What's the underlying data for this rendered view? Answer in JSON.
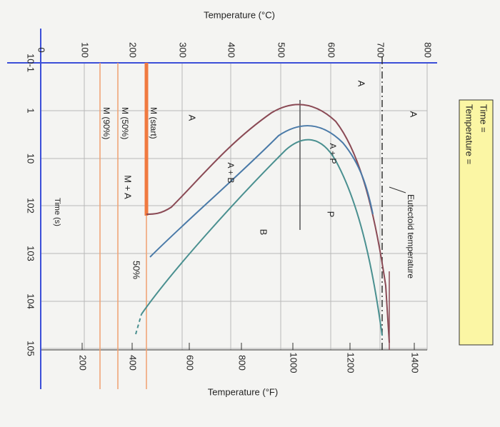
{
  "axes": {
    "celsius_title": "Temperature (°C)",
    "fahrenheit_title": "Temperature (°F)",
    "time_title": "Time (s)",
    "celsius_ticks": [
      "800",
      "700",
      "600",
      "500",
      "400",
      "300",
      "200",
      "100",
      "0"
    ],
    "fahrenheit_ticks": [
      "1400",
      "1200",
      "1000",
      "800",
      "600",
      "400",
      "200"
    ],
    "time_ticks": [
      "10-1",
      "1",
      "10",
      "102",
      "103",
      "104",
      "105"
    ]
  },
  "answer_box": {
    "time": "Time =",
    "temperature": "Temperature ="
  },
  "labels": {
    "austenite_top": "A",
    "austenite_mid": "A",
    "austenite_low": "A",
    "pearlite": "P",
    "bainite": "B",
    "a_plus_p": "A + P",
    "a_plus_b": "A + B",
    "m_plus_a": "M + A",
    "m_start": "M (start)",
    "m_50": "M (50%)",
    "m_90": "M (90%)",
    "fifty": "50%",
    "eutectoid": "Eutectoid temperature"
  }
}
